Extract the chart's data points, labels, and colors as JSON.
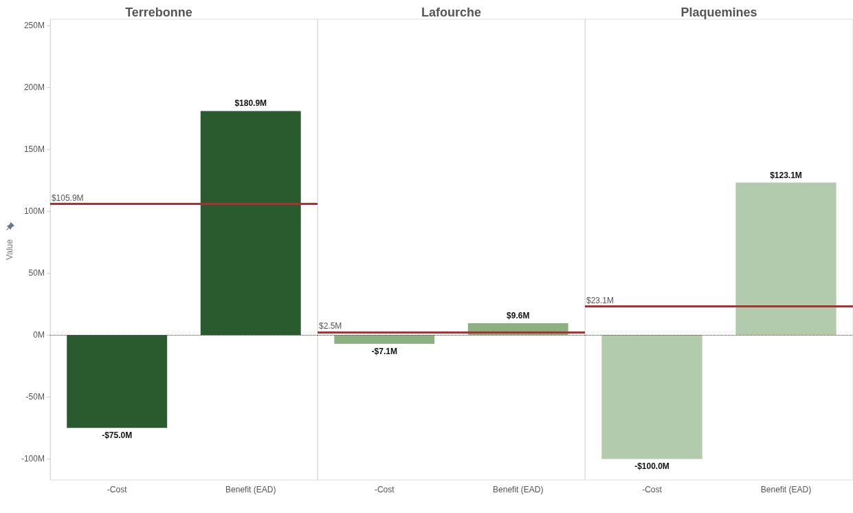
{
  "chart_data": [
    {
      "type": "bar",
      "title": "Terrebonne",
      "ylabel": "Value",
      "categories": [
        "-Cost",
        "Benefit (EAD)"
      ],
      "values": [
        -75.0,
        180.9
      ],
      "color": "#2a5b2e",
      "value_labels": [
        "-$75.0M",
        "$180.9M"
      ],
      "ylim": [
        -117,
        255
      ],
      "yticks": [
        {
          "value": -100,
          "label": "-100M"
        },
        {
          "value": -50,
          "label": "-50M"
        },
        {
          "value": 0,
          "label": "0M"
        },
        {
          "value": 50,
          "label": "50M"
        },
        {
          "value": 100,
          "label": "100M"
        },
        {
          "value": 150,
          "label": "150M"
        },
        {
          "value": 200,
          "label": "200M"
        },
        {
          "value": 250,
          "label": "250M"
        }
      ],
      "ref_lines": [
        {
          "axis": "y",
          "value": 105.9,
          "label": "$105.9M",
          "color": "#a83232"
        },
        {
          "axis": "y",
          "value": 0,
          "label": null,
          "color": "#333333",
          "line_style": "dotted"
        }
      ]
    },
    {
      "type": "bar",
      "title": "Lafourche",
      "categories": [
        "-Cost",
        "Benefit (EAD)"
      ],
      "values": [
        -7.1,
        9.6
      ],
      "color": "#8cb07f",
      "value_labels": [
        "-$7.1M",
        "$9.6M"
      ],
      "ylim": [
        -117,
        255
      ],
      "tick_labels": "x",
      "ref_lines": [
        {
          "axis": "y",
          "value": 2.5,
          "label": "$2.5M",
          "color": "#a83232"
        },
        {
          "axis": "y",
          "value": 0,
          "label": null,
          "color": "#333333",
          "line_style": "dotted"
        }
      ]
    },
    {
      "type": "bar",
      "title": "Plaquemines",
      "categories": [
        "-Cost",
        "Benefit (EAD)"
      ],
      "values": [
        -100.0,
        123.1
      ],
      "color": "#b3cbad",
      "value_labels": [
        "-$100.0M",
        "$123.1M"
      ],
      "ylim": [
        -117,
        255
      ],
      "tick_labels": "x",
      "ref_lines": [
        {
          "axis": "y",
          "value": 23.1,
          "label": "$23.1M",
          "color": "#a83232"
        },
        {
          "axis": "y",
          "value": 0,
          "label": null,
          "color": "#333333",
          "line_style": "dotted"
        }
      ]
    }
  ]
}
